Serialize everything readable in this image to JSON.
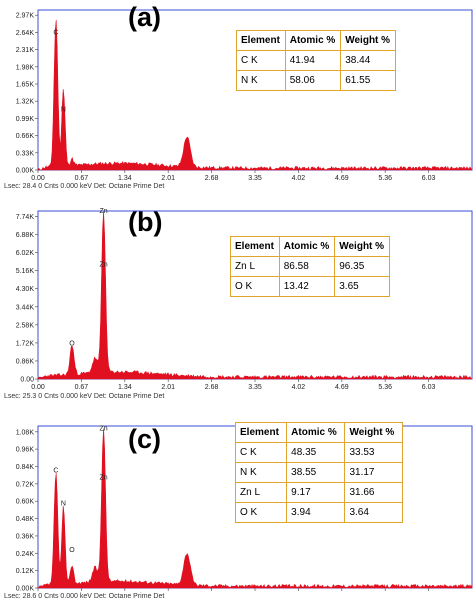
{
  "colors": {
    "spectrum": "#e01020",
    "frame": "#3b4fd8",
    "table_border": "#e2a42b"
  },
  "chart_data": [
    {
      "type": "area",
      "panel_label": "(a)",
      "xlim": [
        0,
        6.7
      ],
      "x_ticks": [
        "0.00",
        "0.67",
        "1.34",
        "2.01",
        "2.68",
        "3.35",
        "4.02",
        "4.69",
        "5.36",
        "6.03"
      ],
      "x_tick_values": [
        0,
        0.67,
        1.34,
        2.01,
        2.68,
        3.35,
        4.02,
        4.69,
        5.36,
        6.03
      ],
      "ylim": [
        0,
        3.07
      ],
      "y_ticks": [
        "0.00K",
        "0.33K",
        "0.66K",
        "0.99K",
        "1.32K",
        "1.65K",
        "1.98K",
        "2.31K",
        "2.64K",
        "2.97K"
      ],
      "y_tick_values": [
        0,
        0.33,
        0.66,
        0.99,
        1.32,
        1.65,
        1.98,
        2.31,
        2.64,
        2.97
      ],
      "peaks": [
        {
          "x": 0.277,
          "height": 2.85,
          "width": 0.028
        },
        {
          "x": 0.392,
          "height": 1.48,
          "width": 0.025
        },
        {
          "x": 0.525,
          "height": 0.13,
          "width": 0.025
        },
        {
          "x": 2.3,
          "height": 0.58,
          "width": 0.05
        }
      ],
      "peak_labels": [
        {
          "text": "C",
          "x": 0.277,
          "y": 2.6
        },
        {
          "text": "N",
          "x": 0.392,
          "y": 1.12
        }
      ],
      "footer": "Lsec: 28.4  0 Cnts  0.000 keV  Det: Octane Prime Det",
      "table": {
        "headers": [
          "Element",
          "Atomic %",
          "Weight %"
        ],
        "rows": [
          [
            "C K",
            "41.94",
            "38.44"
          ],
          [
            "N K",
            "58.06",
            "61.55"
          ]
        ]
      }
    },
    {
      "type": "area",
      "panel_label": "(b)",
      "xlim": [
        0,
        6.7
      ],
      "x_ticks": [
        "0.00",
        "0.67",
        "1.34",
        "2.01",
        "2.68",
        "3.35",
        "4.02",
        "4.69",
        "5.36",
        "6.03"
      ],
      "x_tick_values": [
        0,
        0.67,
        1.34,
        2.01,
        2.68,
        3.35,
        4.02,
        4.69,
        5.36,
        6.03
      ],
      "ylim": [
        0,
        8.0
      ],
      "y_ticks": [
        "0.00",
        "0.86K",
        "1.72K",
        "2.58K",
        "3.44K",
        "4.30K",
        "5.16K",
        "6.02K",
        "6.88K",
        "7.74K"
      ],
      "y_tick_values": [
        0,
        0.86,
        1.72,
        2.58,
        3.44,
        4.3,
        5.16,
        6.02,
        6.88,
        7.74
      ],
      "peaks": [
        {
          "x": 0.525,
          "height": 1.4,
          "width": 0.03
        },
        {
          "x": 0.882,
          "height": 0.7,
          "width": 0.04
        },
        {
          "x": 1.012,
          "height": 7.7,
          "width": 0.03
        }
      ],
      "peak_labels": [
        {
          "text": "O",
          "x": 0.525,
          "y": 1.6
        },
        {
          "text": "Zn",
          "x": 1.012,
          "y": 7.9
        },
        {
          "text": "Zn",
          "x": 1.012,
          "y": 5.35
        }
      ],
      "footer": "Lsec: 25.3  0 Cnts  0.000 keV  Det: Octane Prime Det",
      "table": {
        "headers": [
          "Element",
          "Atomic %",
          "Weight %"
        ],
        "rows": [
          [
            "Zn L",
            "86.58",
            "96.35"
          ],
          [
            "O K",
            "13.42",
            "3.65"
          ]
        ]
      }
    },
    {
      "type": "area",
      "panel_label": "(c)",
      "xlim": [
        0,
        6.7
      ],
      "x_ticks": [
        "0.00",
        "0.67",
        "1.34",
        "2.01",
        "2.68",
        "3.35",
        "4.02",
        "4.69",
        "5.36",
        "6.03"
      ],
      "x_tick_values": [
        0,
        0.67,
        1.34,
        2.01,
        2.68,
        3.35,
        4.02,
        4.69,
        5.36,
        6.03
      ],
      "ylim": [
        0,
        1.12
      ],
      "y_ticks": [
        "0.00K",
        "0.12K",
        "0.24K",
        "0.36K",
        "0.48K",
        "0.60K",
        "0.72K",
        "0.84K",
        "0.96K",
        "1.08K"
      ],
      "y_tick_values": [
        0,
        0.12,
        0.24,
        0.36,
        0.48,
        0.6,
        0.72,
        0.84,
        0.96,
        1.08
      ],
      "peaks": [
        {
          "x": 0.277,
          "height": 0.77,
          "width": 0.028
        },
        {
          "x": 0.392,
          "height": 0.54,
          "width": 0.025
        },
        {
          "x": 0.525,
          "height": 0.13,
          "width": 0.025
        },
        {
          "x": 0.882,
          "height": 0.1,
          "width": 0.04
        },
        {
          "x": 1.012,
          "height": 1.06,
          "width": 0.03
        },
        {
          "x": 2.3,
          "height": 0.22,
          "width": 0.05
        }
      ],
      "peak_labels": [
        {
          "text": "C",
          "x": 0.277,
          "y": 0.8
        },
        {
          "text": "N",
          "x": 0.392,
          "y": 0.57
        },
        {
          "text": "O",
          "x": 0.525,
          "y": 0.25
        },
        {
          "text": "Zn",
          "x": 1.012,
          "y": 1.09
        },
        {
          "text": "Zn",
          "x": 1.012,
          "y": 0.75
        }
      ],
      "footer": "Lsec: 28.6  0 Cnts  0.000 keV  Det: Octane Prime Det",
      "table": {
        "headers": [
          "Element",
          "Atomic %",
          "Weight %"
        ],
        "rows": [
          [
            "C K",
            "48.35",
            "33.53"
          ],
          [
            "N K",
            "38.55",
            "31.17"
          ],
          [
            "Zn L",
            "9.17",
            "31.66"
          ],
          [
            "O K",
            "3.94",
            "3.64"
          ]
        ]
      }
    }
  ]
}
